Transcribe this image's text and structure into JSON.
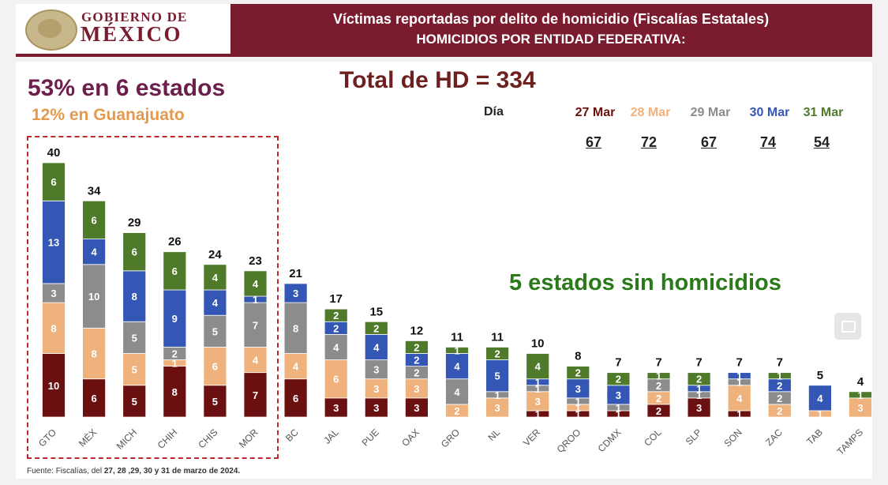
{
  "header": {
    "logo_line1": "GOBIERNO DE",
    "logo_line2": "MÉXICO",
    "title_line1": "Víctimas reportadas por delito de homicidio (Fiscalías Estatales)",
    "title_line2": "HOMICIDIOS POR ENTIDAD FEDERATIVA:"
  },
  "headline_states": "53% en 6 estados",
  "headline_gto": "12% en Guanajuato",
  "total_label": "Total de HD = 334",
  "no_homicide_label": "5 estados sin homicidios",
  "day_header": "Día",
  "days": [
    {
      "label": "27 Mar",
      "total": "67",
      "color": "#6b1010"
    },
    {
      "label": "28 Mar",
      "total": "72",
      "color": "#f0b27d"
    },
    {
      "label": "29 Mar",
      "total": "67",
      "color": "#8c8c8c"
    },
    {
      "label": "30 Mar",
      "total": "74",
      "color": "#3456b5"
    },
    {
      "label": "31 Mar",
      "total": "54",
      "color": "#4f7a2a"
    }
  ],
  "source_prefix": "Fuente: Fiscalías, del ",
  "source_bold": "27, 28 ,29, 30 y 31 de marzo de 2024.",
  "icon_names": [
    "seal-icon",
    "expand-icon"
  ],
  "chart_data": {
    "type": "bar",
    "stacked": true,
    "categories": [
      "GTO",
      "MÉX",
      "MICH",
      "CHIH",
      "CHIS",
      "MOR",
      "BC",
      "JAL",
      "PUE",
      "OAX",
      "GRO",
      "NL",
      "VER",
      "QROO",
      "CDMX",
      "COL",
      "SLP",
      "SON",
      "ZAC",
      "TAB",
      "TAMPS"
    ],
    "totals": [
      40,
      34,
      29,
      26,
      24,
      23,
      21,
      17,
      15,
      12,
      11,
      11,
      10,
      8,
      7,
      7,
      7,
      7,
      7,
      5,
      4
    ],
    "series": [
      {
        "name": "27 Mar",
        "color": "#6b1010",
        "values": [
          10,
          6,
          5,
          8,
          5,
          7,
          6,
          3,
          3,
          3,
          0,
          0,
          1,
          1,
          1,
          2,
          3,
          1,
          0,
          0,
          0
        ]
      },
      {
        "name": "28 Mar",
        "color": "#f0b27d",
        "values": [
          8,
          8,
          5,
          1,
          6,
          4,
          4,
          6,
          3,
          3,
          2,
          3,
          3,
          1,
          0,
          2,
          0,
          4,
          2,
          1,
          3
        ]
      },
      {
        "name": "29 Mar",
        "color": "#8c8c8c",
        "values": [
          3,
          10,
          5,
          2,
          5,
          7,
          8,
          4,
          3,
          2,
          4,
          1,
          1,
          1,
          1,
          2,
          1,
          1,
          2,
          0,
          0
        ]
      },
      {
        "name": "30 Mar",
        "color": "#3456b5",
        "values": [
          13,
          4,
          8,
          9,
          4,
          1,
          3,
          2,
          4,
          2,
          4,
          5,
          1,
          3,
          3,
          0,
          1,
          1,
          2,
          4,
          0
        ]
      },
      {
        "name": "31 Mar",
        "color": "#4f7a2a",
        "values": [
          6,
          6,
          6,
          6,
          4,
          4,
          0,
          2,
          2,
          2,
          1,
          2,
          4,
          2,
          2,
          1,
          2,
          0,
          1,
          0,
          1
        ]
      }
    ],
    "ylim": [
      0,
      40
    ],
    "grid": false,
    "legend": "top-right"
  }
}
